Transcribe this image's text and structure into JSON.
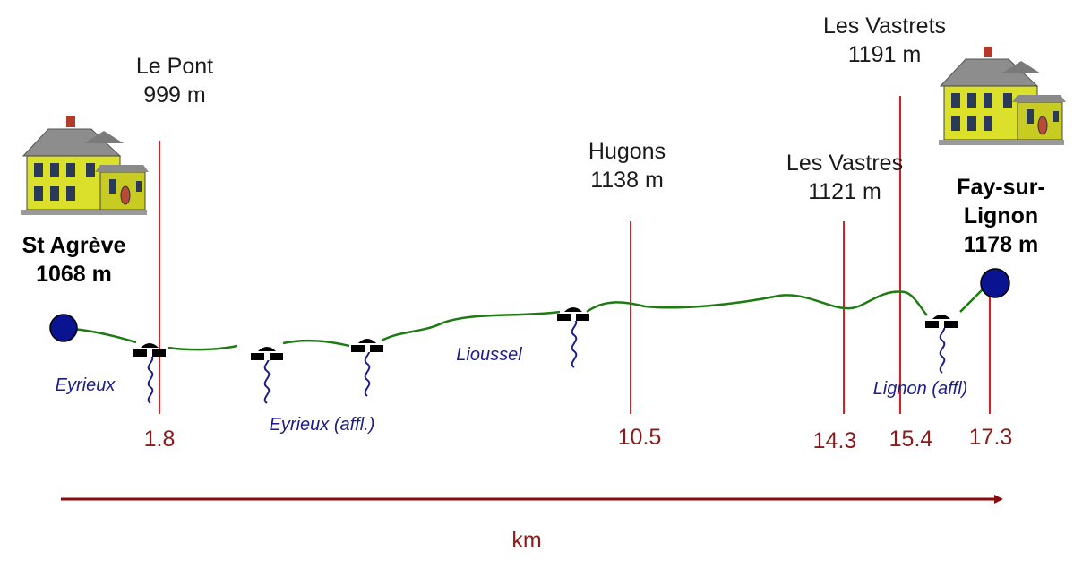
{
  "colors": {
    "marker_line": "#e8191e",
    "route": "#1e7a12",
    "river": "#1c1c8c",
    "distance_text": "#8b1a1a",
    "axis": "#8b0a0a",
    "endpoint": "#0a1491"
  },
  "start_town": {
    "name": "St Agrève",
    "altitude": "1068 m",
    "icon": "house-icon"
  },
  "end_town": {
    "name_line1": "Fay-sur-",
    "name_line2": "Lignon",
    "altitude": "1178 m",
    "icon": "house-icon"
  },
  "places": [
    {
      "name": "Le Pont",
      "altitude": "999 m"
    },
    {
      "name": "Hugons",
      "altitude": "1138 m"
    },
    {
      "name": "Les Vastres",
      "altitude": "1121 m"
    },
    {
      "name": "Les Vastrets",
      "altitude": "1191 m"
    }
  ],
  "distances": [
    "1.8",
    "10.5",
    "14.3",
    "15.4",
    "17.3"
  ],
  "rivers": [
    "Eyrieux",
    "Eyrieux (affl.)",
    "Lioussel",
    "Lignon (affl)"
  ],
  "bridge_icon": "bridge-icon",
  "axis_label": "km"
}
